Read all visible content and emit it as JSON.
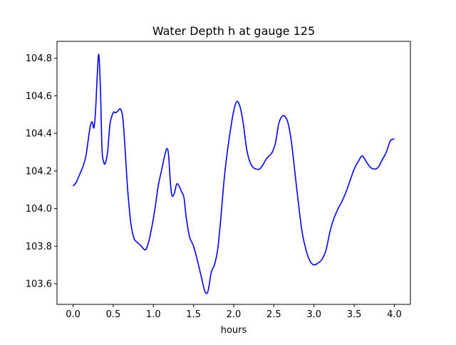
{
  "chart_data": {
    "type": "line",
    "title": "Water Depth h at gauge 125",
    "xlabel": "hours",
    "ylabel": "",
    "xlim": [
      -0.2,
      4.2
    ],
    "ylim": [
      103.49,
      104.89
    ],
    "xticks": [
      0.0,
      0.5,
      1.0,
      1.5,
      2.0,
      2.5,
      3.0,
      3.5,
      4.0
    ],
    "xtick_labels": [
      "0.0",
      "0.5",
      "1.0",
      "1.5",
      "2.0",
      "2.5",
      "3.0",
      "3.5",
      "4.0"
    ],
    "yticks": [
      103.6,
      103.8,
      104.0,
      104.2,
      104.4,
      104.6,
      104.8
    ],
    "ytick_labels": [
      "103.6",
      "103.8",
      "104.0",
      "104.2",
      "104.4",
      "104.6",
      "104.8"
    ],
    "grid": false,
    "legend": "none",
    "series": [
      {
        "color": "#0000ff",
        "x": [
          0.0,
          0.04,
          0.08,
          0.12,
          0.16,
          0.2,
          0.22,
          0.24,
          0.26,
          0.28,
          0.3,
          0.32,
          0.34,
          0.36,
          0.38,
          0.4,
          0.43,
          0.46,
          0.5,
          0.53,
          0.56,
          0.59,
          0.62,
          0.65,
          0.68,
          0.72,
          0.76,
          0.8,
          0.85,
          0.9,
          0.94,
          0.98,
          1.02,
          1.06,
          1.1,
          1.14,
          1.17,
          1.19,
          1.21,
          1.23,
          1.26,
          1.29,
          1.32,
          1.35,
          1.38,
          1.41,
          1.45,
          1.5,
          1.55,
          1.6,
          1.64,
          1.67,
          1.69,
          1.72,
          1.76,
          1.8,
          1.84,
          1.88,
          1.92,
          1.96,
          2.0,
          2.04,
          2.08,
          2.12,
          2.16,
          2.2,
          2.24,
          2.28,
          2.32,
          2.36,
          2.4,
          2.44,
          2.48,
          2.52,
          2.56,
          2.6,
          2.64,
          2.68,
          2.72,
          2.76,
          2.8,
          2.85,
          2.9,
          2.95,
          3.0,
          3.05,
          3.1,
          3.15,
          3.2,
          3.25,
          3.3,
          3.35,
          3.4,
          3.45,
          3.5,
          3.55,
          3.6,
          3.65,
          3.7,
          3.75,
          3.8,
          3.85,
          3.9,
          3.95,
          4.0
        ],
        "y": [
          104.12,
          104.14,
          104.18,
          104.22,
          104.28,
          104.4,
          104.45,
          104.46,
          104.43,
          104.52,
          104.7,
          104.82,
          104.65,
          104.32,
          104.25,
          104.24,
          104.3,
          104.45,
          104.51,
          104.51,
          104.52,
          104.53,
          104.48,
          104.3,
          104.1,
          103.92,
          103.84,
          103.82,
          103.8,
          103.78,
          103.82,
          103.9,
          104.0,
          104.12,
          104.2,
          104.28,
          104.32,
          104.28,
          104.15,
          104.07,
          104.08,
          104.13,
          104.12,
          104.09,
          104.06,
          103.95,
          103.85,
          103.8,
          103.72,
          103.63,
          103.56,
          103.55,
          103.58,
          103.66,
          103.7,
          103.78,
          103.95,
          104.15,
          104.3,
          104.42,
          104.52,
          104.57,
          104.54,
          104.45,
          104.32,
          104.25,
          104.22,
          104.21,
          104.21,
          104.23,
          104.26,
          104.28,
          104.3,
          104.35,
          104.45,
          104.49,
          104.49,
          104.45,
          104.35,
          104.2,
          104.05,
          103.88,
          103.78,
          103.72,
          103.7,
          103.71,
          103.73,
          103.78,
          103.88,
          103.95,
          104.0,
          104.04,
          104.09,
          104.15,
          104.21,
          104.25,
          104.28,
          104.25,
          104.22,
          104.21,
          104.22,
          104.26,
          104.3,
          104.36,
          104.37
        ]
      }
    ]
  }
}
